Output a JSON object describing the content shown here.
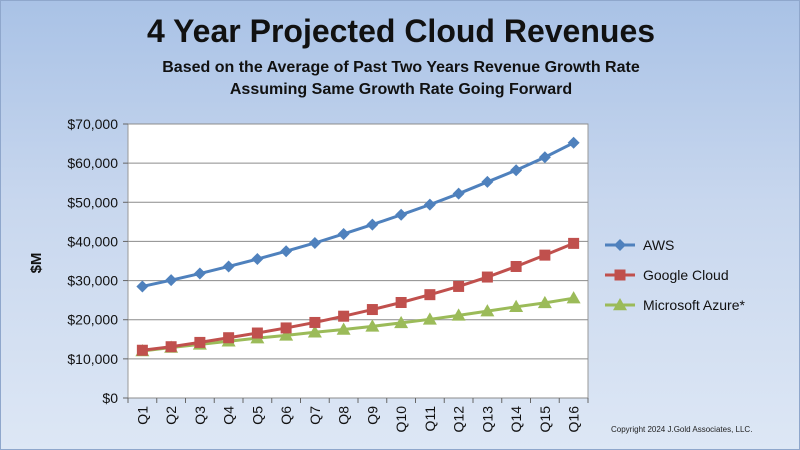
{
  "chart_data": {
    "type": "line",
    "title": "4 Year Projected Cloud Revenues",
    "subtitle_lines": [
      "Based on the Average of Past Two Years Revenue Growth Rate",
      "Assuming Same Growth Rate Going Forward"
    ],
    "ylabel": "$M",
    "xlabel": "",
    "categories": [
      "Q1",
      "Q2",
      "Q3",
      "Q4",
      "Q5",
      "Q6",
      "Q7",
      "Q8",
      "Q9",
      "Q10",
      "Q11",
      "Q12",
      "Q13",
      "Q14",
      "Q15",
      "Q16"
    ],
    "ylim": [
      0,
      70000
    ],
    "y_ticks": [
      0,
      10000,
      20000,
      30000,
      40000,
      50000,
      60000,
      70000
    ],
    "y_tick_labels": [
      "$0",
      "$10,000",
      "$20,000",
      "$30,000",
      "$40,000",
      "$50,000",
      "$60,000",
      "$70,000"
    ],
    "grid": "horizontal",
    "legend_position": "right",
    "series": [
      {
        "name": "AWS",
        "color": "#4f81bd",
        "marker": "diamond",
        "values": [
          28500,
          30100,
          31800,
          33600,
          35500,
          37500,
          39600,
          41900,
          44300,
          46800,
          49400,
          52200,
          55200,
          58200,
          61500,
          65200
        ]
      },
      {
        "name": "Google Cloud",
        "color": "#c0504d",
        "marker": "square",
        "values": [
          12200,
          13100,
          14200,
          15400,
          16600,
          17900,
          19300,
          20900,
          22600,
          24400,
          26400,
          28500,
          30900,
          33600,
          36500,
          39500
        ]
      },
      {
        "name": "Microsoft Azure*",
        "color": "#9bbb59",
        "marker": "triangle",
        "values": [
          12000,
          12900,
          13700,
          14500,
          15300,
          16000,
          16800,
          17500,
          18300,
          19200,
          20100,
          21100,
          22200,
          23300,
          24300,
          25500
        ]
      }
    ]
  },
  "copyright": "Copyright 2024 J.Gold Associates, LLC."
}
